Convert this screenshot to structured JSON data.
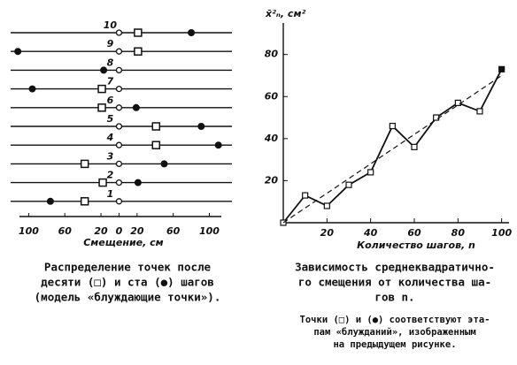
{
  "chart_data": [
    {
      "type": "walk",
      "xlabel": "Смещение, см",
      "xlim": [
        -120,
        125
      ],
      "xticks": [
        {
          "value": -100,
          "label": "100"
        },
        {
          "value": -60,
          "label": "60"
        },
        {
          "value": -20,
          "label": "20"
        },
        0,
        20,
        60,
        100
      ],
      "categories": [
        "10",
        "9",
        "8",
        "7",
        "6",
        "5",
        "4",
        "3",
        "2",
        "1"
      ],
      "series": [
        {
          "marker": "start",
          "values": [
            0,
            0,
            0,
            0,
            0,
            0,
            0,
            0,
            0,
            0
          ]
        },
        {
          "marker": "square",
          "values": [
            21,
            21,
            null,
            -19,
            -19,
            41,
            41,
            -38,
            -18,
            -38
          ]
        },
        {
          "marker": "dot",
          "values": [
            80,
            -112,
            -17,
            -96,
            19,
            91,
            110,
            50,
            21,
            -76
          ]
        }
      ]
    },
    {
      "type": "line",
      "ylabel": "x̄²ₙ, см²",
      "xlabel": "Количество шагов, n",
      "xlim": [
        0,
        105
      ],
      "ylim": [
        0,
        95
      ],
      "xticks": [
        20,
        40,
        60,
        80,
        100
      ],
      "yticks": [
        20,
        40,
        60,
        80
      ],
      "series": [
        {
          "style": "solid",
          "x": [
            0,
            10,
            20,
            30,
            40,
            50,
            60,
            70,
            80,
            90,
            100
          ],
          "values": [
            0,
            13,
            8,
            18,
            24,
            46,
            36,
            50,
            57,
            53,
            73
          ]
        },
        {
          "style": "dashed",
          "x": [
            0,
            100
          ],
          "values": [
            0,
            70
          ]
        }
      ]
    }
  ],
  "captions": {
    "left": [
      "Распределение точек после",
      "десяти (□) и ста (●) шагов",
      "(модель «блуждающие точки»)."
    ],
    "right": [
      "Зависимость среднеквадратично-",
      "го смещения от количества ша-",
      "гов n."
    ],
    "note": [
      "Точки (□) и (●) соответствуют эта-",
      "пам «блужданий», изображенным",
      "на предыдущем рисунке."
    ]
  }
}
